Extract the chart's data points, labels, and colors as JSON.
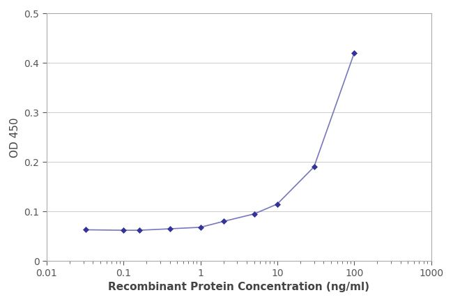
{
  "x_values": [
    0.032,
    0.1,
    0.16,
    0.4,
    1.0,
    2.0,
    5.0,
    10.0,
    30.0,
    100.0
  ],
  "y_values": [
    0.063,
    0.062,
    0.062,
    0.065,
    0.068,
    0.08,
    0.095,
    0.115,
    0.19,
    0.42
  ],
  "xlim": [
    0.01,
    1000
  ],
  "ylim": [
    0,
    0.5
  ],
  "xlabel": "Recombinant Protein Concentration (ng/ml)",
  "ylabel": "OD 450",
  "line_color": "#7777bb",
  "marker_color": "#333399",
  "marker": "D",
  "marker_size": 4,
  "line_width": 1.2,
  "yticks": [
    0,
    0.1,
    0.2,
    0.3,
    0.4,
    0.5
  ],
  "xtick_values": [
    0.01,
    0.1,
    1,
    10,
    100,
    1000
  ],
  "background_color": "#ffffff",
  "grid_color": "#cccccc",
  "xlabel_fontsize": 11,
  "ylabel_fontsize": 11,
  "tick_fontsize": 10,
  "spine_color": "#aaaaaa",
  "tick_color": "#555555"
}
